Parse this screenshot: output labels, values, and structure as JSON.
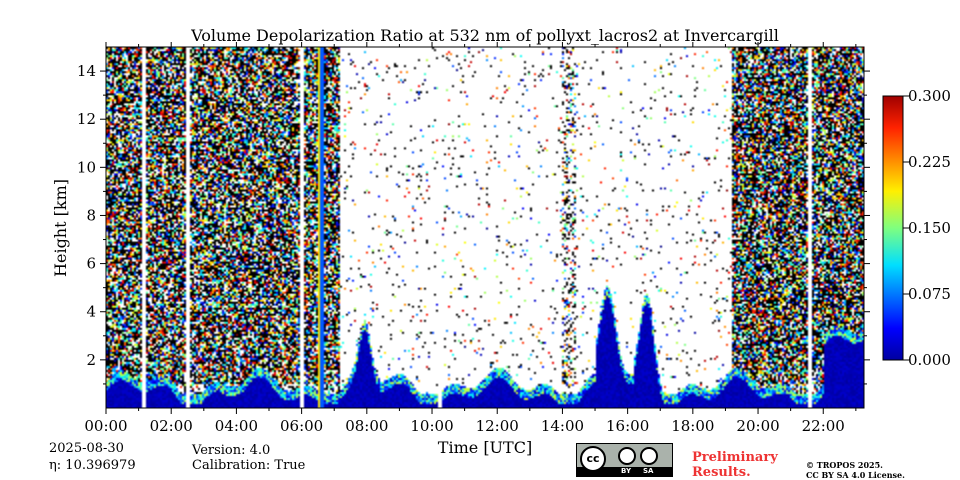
{
  "chart_data": {
    "type": "heatmap",
    "title": "Volume Depolarization Ratio at 532 nm of pollyxt_lacros2 at Invercargill",
    "xlabel": "Time [UTC]",
    "ylabel": "Height [km]",
    "x_tick_labels": [
      "00:00",
      "02:00",
      "04:00",
      "06:00",
      "08:00",
      "10:00",
      "12:00",
      "14:00",
      "16:00",
      "18:00",
      "20:00",
      "22:00"
    ],
    "x_tick_hours": [
      0,
      2,
      4,
      6,
      8,
      10,
      12,
      14,
      16,
      18,
      20,
      22
    ],
    "xlim_hours": [
      0,
      23.25
    ],
    "y_ticks": [
      2,
      4,
      6,
      8,
      10,
      12,
      14
    ],
    "ylim": [
      0,
      15
    ],
    "colorbar": {
      "ticks": [
        "0.000",
        "0.075",
        "0.150",
        "0.225",
        "0.300"
      ],
      "range": [
        0.0,
        0.3
      ],
      "colormap": "jet"
    },
    "data_gaps_hours": [
      1.1,
      2.45,
      5.95,
      10.2,
      21.55
    ],
    "notes": {}
  },
  "footer": {
    "date": "2025-08-30",
    "eta": "η: 10.396979",
    "version": "Version: 4.0",
    "calibration": "Calibration: True",
    "preliminary": "Preliminary\nResults.",
    "copyright": "© TROPOS 2025.",
    "license": "CC BY SA 4.0 License.",
    "cc_by": "BY",
    "cc_sa": "SA",
    "cc_mark": "cc"
  },
  "colors": {
    "background": "#ffffff",
    "prelim_text": "#ee3333"
  }
}
